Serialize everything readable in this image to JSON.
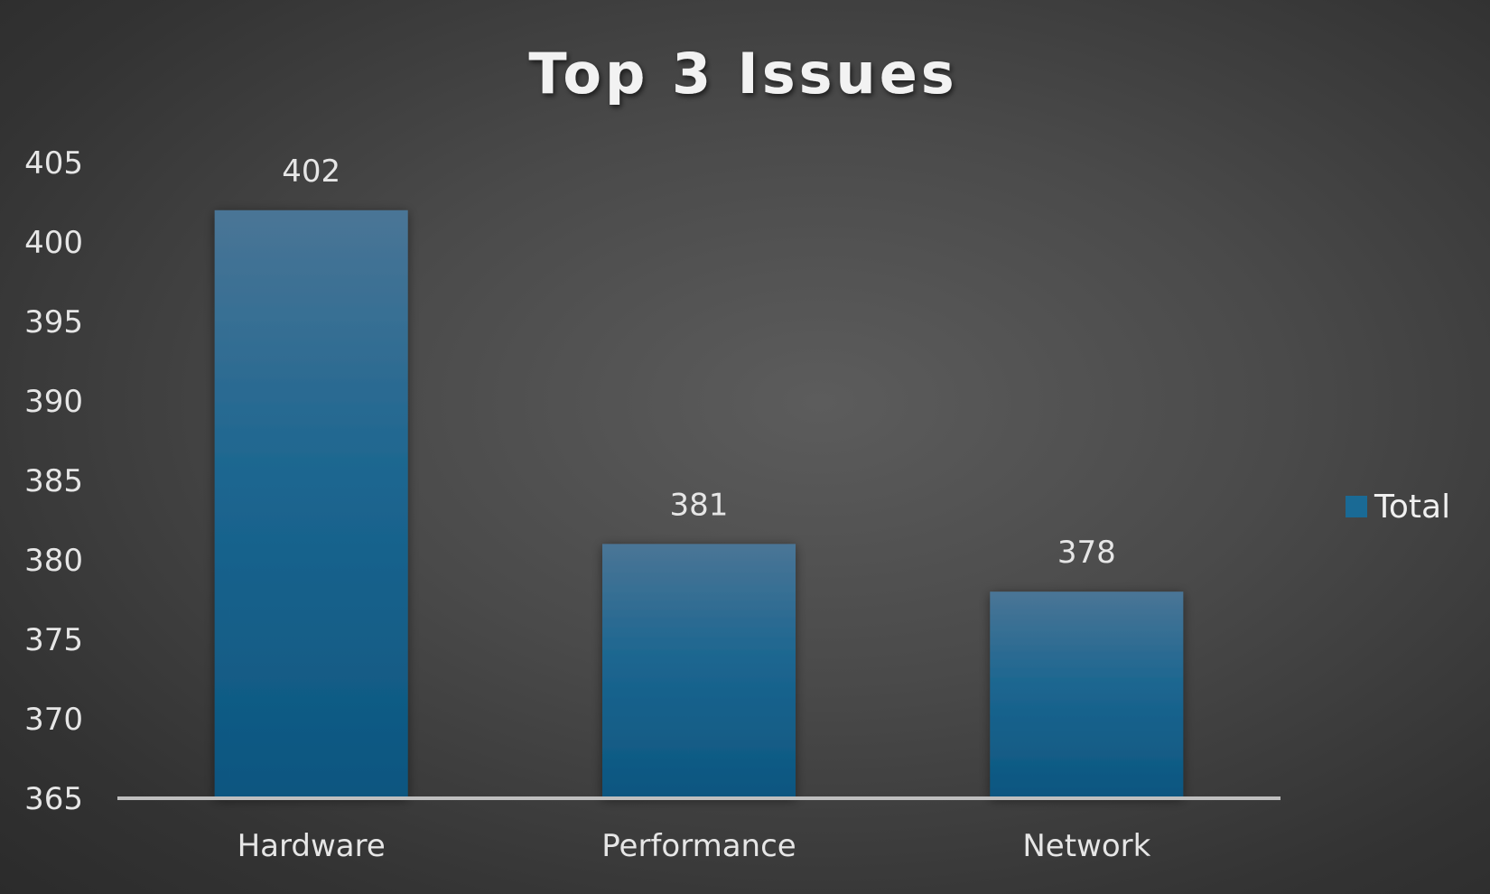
{
  "chart_data": {
    "type": "bar",
    "title": "Top 3 Issues",
    "categories": [
      "Hardware",
      "Performance",
      "Network"
    ],
    "series": [
      {
        "name": "Total",
        "values": [
          402,
          381,
          378
        ]
      }
    ],
    "ylim": [
      365,
      405
    ],
    "yticks": [
      365,
      370,
      375,
      380,
      385,
      390,
      395,
      400,
      405
    ],
    "xlabel": "",
    "ylabel": "",
    "grid": false,
    "legend_position": "right",
    "data_labels": true,
    "colors": {
      "bar_top": "#4a7596",
      "bar_bottom": "#0c5680",
      "legend_swatch": "#1a6a95",
      "axis": "#bfbfbf"
    }
  }
}
